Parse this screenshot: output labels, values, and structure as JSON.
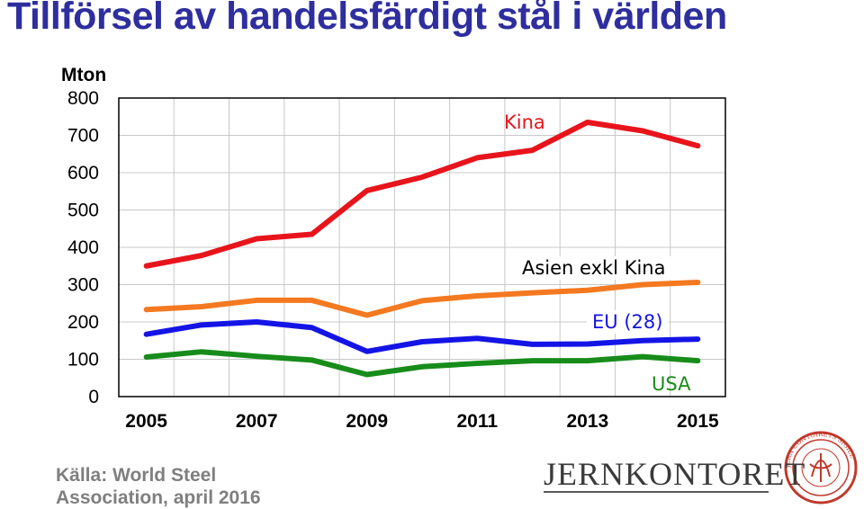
{
  "chart_data": {
    "type": "line",
    "title": "Tillförsel av handelsfärdigt stål i världen",
    "ylabel": "Mton",
    "xlabel": "",
    "x": [
      2005,
      2006,
      2007,
      2008,
      2009,
      2010,
      2011,
      2012,
      2013,
      2014,
      2015
    ],
    "xticks": [
      "2005",
      "2007",
      "2009",
      "2011",
      "2013",
      "2015"
    ],
    "yticks": [
      "0",
      "100",
      "200",
      "300",
      "400",
      "500",
      "600",
      "700",
      "800"
    ],
    "ylim": [
      0,
      800
    ],
    "grid": true,
    "series": [
      {
        "name": "Kina",
        "color": "#e8141c",
        "values": [
          350,
          378,
          423,
          435,
          552,
          588,
          640,
          660,
          735,
          712,
          672
        ]
      },
      {
        "name": "Asien exkl Kina",
        "color": "#f47920",
        "values": [
          233,
          241,
          258,
          258,
          218,
          257,
          270,
          278,
          285,
          300,
          306
        ]
      },
      {
        "name": "EU (28)",
        "color": "#1414e6",
        "values": [
          167,
          192,
          200,
          185,
          121,
          147,
          156,
          140,
          141,
          150,
          154
        ]
      },
      {
        "name": "USA",
        "color": "#178c1a",
        "values": [
          106,
          120,
          108,
          98,
          59,
          80,
          89,
          96,
          96,
          107,
          96
        ]
      }
    ]
  },
  "source_text": [
    "Källa: World Steel",
    "Association, april 2016"
  ],
  "logo_text": "JERNKONTORET",
  "seal_text": "JERN CONTOIRETS SIGILL"
}
